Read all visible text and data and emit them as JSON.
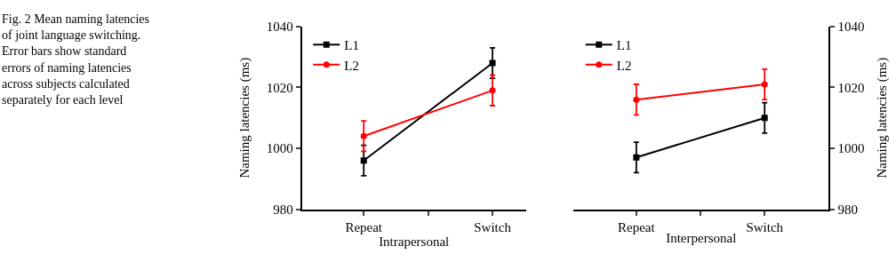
{
  "chart_data": [
    {
      "type": "line",
      "xlabel": "Intrapersonal",
      "ylabel": "Naming latencies (ms)",
      "categories": [
        "Repeat",
        "Switch"
      ],
      "ylim": [
        980,
        1040
      ],
      "yticks": [
        980,
        1000,
        1020,
        1040
      ],
      "legend": "top left",
      "annotations": [
        "Fig. 2 Mean naming latencies of joint language switching. Error bars show standard errors of naming latencies across subjects calculated separately for each level"
      ],
      "series": [
        {
          "name": "L1",
          "color": "#000000",
          "values": [
            996,
            1028
          ],
          "errors": [
            5,
            5
          ],
          "marker": "square"
        },
        {
          "name": "L2",
          "color": "#ff0000",
          "values": [
            1004,
            1019
          ],
          "errors": [
            5,
            5
          ],
          "marker": "circle"
        }
      ]
    },
    {
      "type": "line",
      "xlabel": "Interpersonal",
      "y2label": "Naming latencies (ms)",
      "categories": [
        "Repeat",
        "Switch"
      ],
      "y2lim": [
        980,
        1040
      ],
      "y2ticks": [
        980,
        1000,
        1020,
        1040
      ],
      "legend": "top left",
      "series": [
        {
          "name": "L1",
          "color": "#000000",
          "values": [
            997,
            1010
          ],
          "errors": [
            5,
            5
          ],
          "marker": "square",
          "axis": "y2"
        },
        {
          "name": "L2",
          "color": "#ff0000",
          "values": [
            1016,
            1021
          ],
          "errors": [
            5,
            5
          ],
          "marker": "circle",
          "axis": "y2"
        }
      ]
    }
  ]
}
